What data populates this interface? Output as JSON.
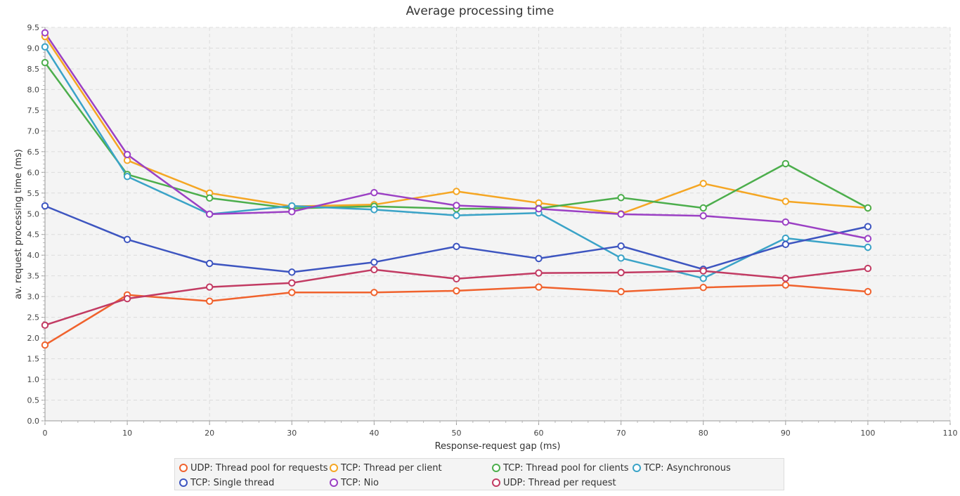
{
  "chart_data": {
    "type": "line",
    "title": "Average processing time",
    "xlabel": "Response-request gap (ms)",
    "ylabel": "av. request processing time (ms)",
    "xlim": [
      0,
      110
    ],
    "ylim": [
      0,
      9.5
    ],
    "xticks": [
      0,
      10,
      20,
      30,
      40,
      50,
      60,
      70,
      80,
      90,
      100,
      110
    ],
    "yticks": [
      "0.0",
      "0.5",
      "1.0",
      "1.5",
      "2.0",
      "2.5",
      "3.0",
      "3.5",
      "4.0",
      "4.5",
      "5.0",
      "5.5",
      "6.0",
      "6.5",
      "7.0",
      "7.5",
      "8.0",
      "8.5",
      "9.0",
      "9.5"
    ],
    "grid": true,
    "legend_position": "bottom",
    "x": [
      0,
      10,
      20,
      30,
      40,
      50,
      60,
      70,
      80,
      90,
      100
    ],
    "series": [
      {
        "name": "UDP: Thread pool for requests",
        "color": "#f0622d",
        "values": [
          1.83,
          3.04,
          2.89,
          3.1,
          3.1,
          3.14,
          3.23,
          3.12,
          3.22,
          3.28,
          3.12
        ]
      },
      {
        "name": "TCP: Thread per client",
        "color": "#f5a623",
        "values": [
          9.28,
          6.29,
          5.5,
          5.18,
          5.22,
          5.54,
          5.26,
          5.0,
          5.73,
          5.3,
          5.14
        ]
      },
      {
        "name": "TCP: Thread pool for clients",
        "color": "#4cae4c",
        "values": [
          8.65,
          5.95,
          5.38,
          5.13,
          5.18,
          5.12,
          5.13,
          5.39,
          5.14,
          6.21,
          5.14
        ]
      },
      {
        "name": "TCP: Asynchronous",
        "color": "#3aa3c7",
        "values": [
          9.03,
          5.9,
          4.99,
          5.19,
          5.1,
          4.96,
          5.02,
          3.93,
          3.44,
          4.41,
          4.19
        ]
      },
      {
        "name": "TCP: Single thread",
        "color": "#3d55c0",
        "values": [
          5.19,
          4.38,
          3.8,
          3.59,
          3.83,
          4.21,
          3.92,
          4.22,
          3.66,
          4.26,
          4.69
        ]
      },
      {
        "name": "TCP: Nio",
        "color": "#9b40c4",
        "values": [
          9.37,
          6.43,
          4.99,
          5.05,
          5.51,
          5.2,
          5.12,
          4.99,
          4.95,
          4.8,
          4.4
        ]
      },
      {
        "name": "UDP: Thread per request",
        "color": "#c23b63",
        "values": [
          2.31,
          2.95,
          3.23,
          3.33,
          3.65,
          3.43,
          3.57,
          3.58,
          3.62,
          3.44,
          3.68
        ]
      }
    ]
  }
}
